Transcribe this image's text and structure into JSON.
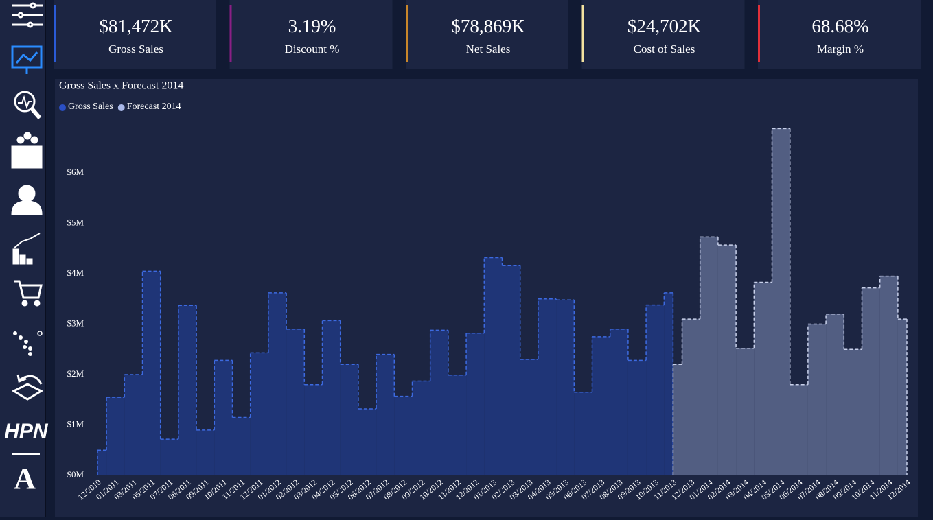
{
  "sidebar": {
    "labels": [
      "HPN",
      "A"
    ]
  },
  "kpis": [
    {
      "value": "$81,472K",
      "label": "Gross Sales",
      "color": "#2a5bd7"
    },
    {
      "value": "3.19%",
      "label": "Discount %",
      "color": "#8a1f86"
    },
    {
      "value": "$78,869K",
      "label": "Net Sales",
      "color": "#c8862a"
    },
    {
      "value": "$24,702K",
      "label": "Cost of Sales",
      "color": "#f3e2a0"
    },
    {
      "value": "68.68%",
      "label": "Margin %",
      "color": "#e0303a"
    }
  ],
  "chart_data": {
    "type": "step-area",
    "title": "Gross Sales x Forecast 2014",
    "categories": [
      "12/2010",
      "01/2011",
      "03/2011",
      "05/2011",
      "07/2011",
      "08/2011",
      "09/2011",
      "10/2011",
      "11/2011",
      "12/2011",
      "01/2012",
      "02/2012",
      "03/2012",
      "04/2012",
      "05/2012",
      "06/2012",
      "07/2012",
      "08/2012",
      "09/2012",
      "10/2012",
      "11/2012",
      "12/2012",
      "01/2013",
      "02/2013",
      "03/2013",
      "04/2013",
      "05/2013",
      "06/2013",
      "07/2013",
      "08/2013",
      "09/2013",
      "10/2013",
      "11/2013",
      "12/2013",
      "01/2014",
      "02/2014",
      "03/2014",
      "04/2014",
      "05/2014",
      "06/2014",
      "07/2014",
      "08/2014",
      "09/2014",
      "10/2014",
      "11/2014",
      "12/2014"
    ],
    "series": [
      {
        "name": "Gross Sales",
        "color": "#1f3577",
        "line_color": "#3d6ae0",
        "legend_color": "#2a4fc4",
        "values": [
          0.5,
          1.55,
          2.0,
          4.05,
          0.72,
          3.37,
          0.9,
          2.28,
          1.15,
          2.43,
          3.62,
          2.9,
          1.8,
          3.07,
          2.2,
          1.32,
          2.4,
          1.57,
          1.87,
          2.88,
          1.99,
          2.82,
          4.32,
          4.16,
          2.3,
          3.5,
          3.48,
          1.65,
          2.75,
          2.9,
          2.28,
          3.38,
          3.62,
          null,
          null,
          null,
          null,
          null,
          null,
          null,
          null,
          null,
          null,
          null,
          null,
          null
        ]
      },
      {
        "name": "Forecast 2014",
        "color": "#525e82",
        "line_color": "#c8d0ea",
        "legend_color": "#a9b8e8",
        "values": [
          null,
          null,
          null,
          null,
          null,
          null,
          null,
          null,
          null,
          null,
          null,
          null,
          null,
          null,
          null,
          null,
          null,
          null,
          null,
          null,
          null,
          null,
          null,
          null,
          null,
          null,
          null,
          null,
          null,
          null,
          null,
          null,
          2.2,
          3.1,
          4.73,
          4.57,
          2.52,
          3.83,
          6.88,
          1.8,
          3.0,
          3.2,
          2.5,
          3.72,
          3.95,
          3.1
        ]
      }
    ],
    "ylim": [
      0,
      7
    ],
    "yticks": [
      {
        "value": 0,
        "label": "$0M"
      },
      {
        "value": 1,
        "label": "$1M"
      },
      {
        "value": 2,
        "label": "$2M"
      },
      {
        "value": 3,
        "label": "$3M"
      },
      {
        "value": 4,
        "label": "$4M"
      },
      {
        "value": 5,
        "label": "$5M"
      },
      {
        "value": 6,
        "label": "$6M"
      }
    ]
  }
}
